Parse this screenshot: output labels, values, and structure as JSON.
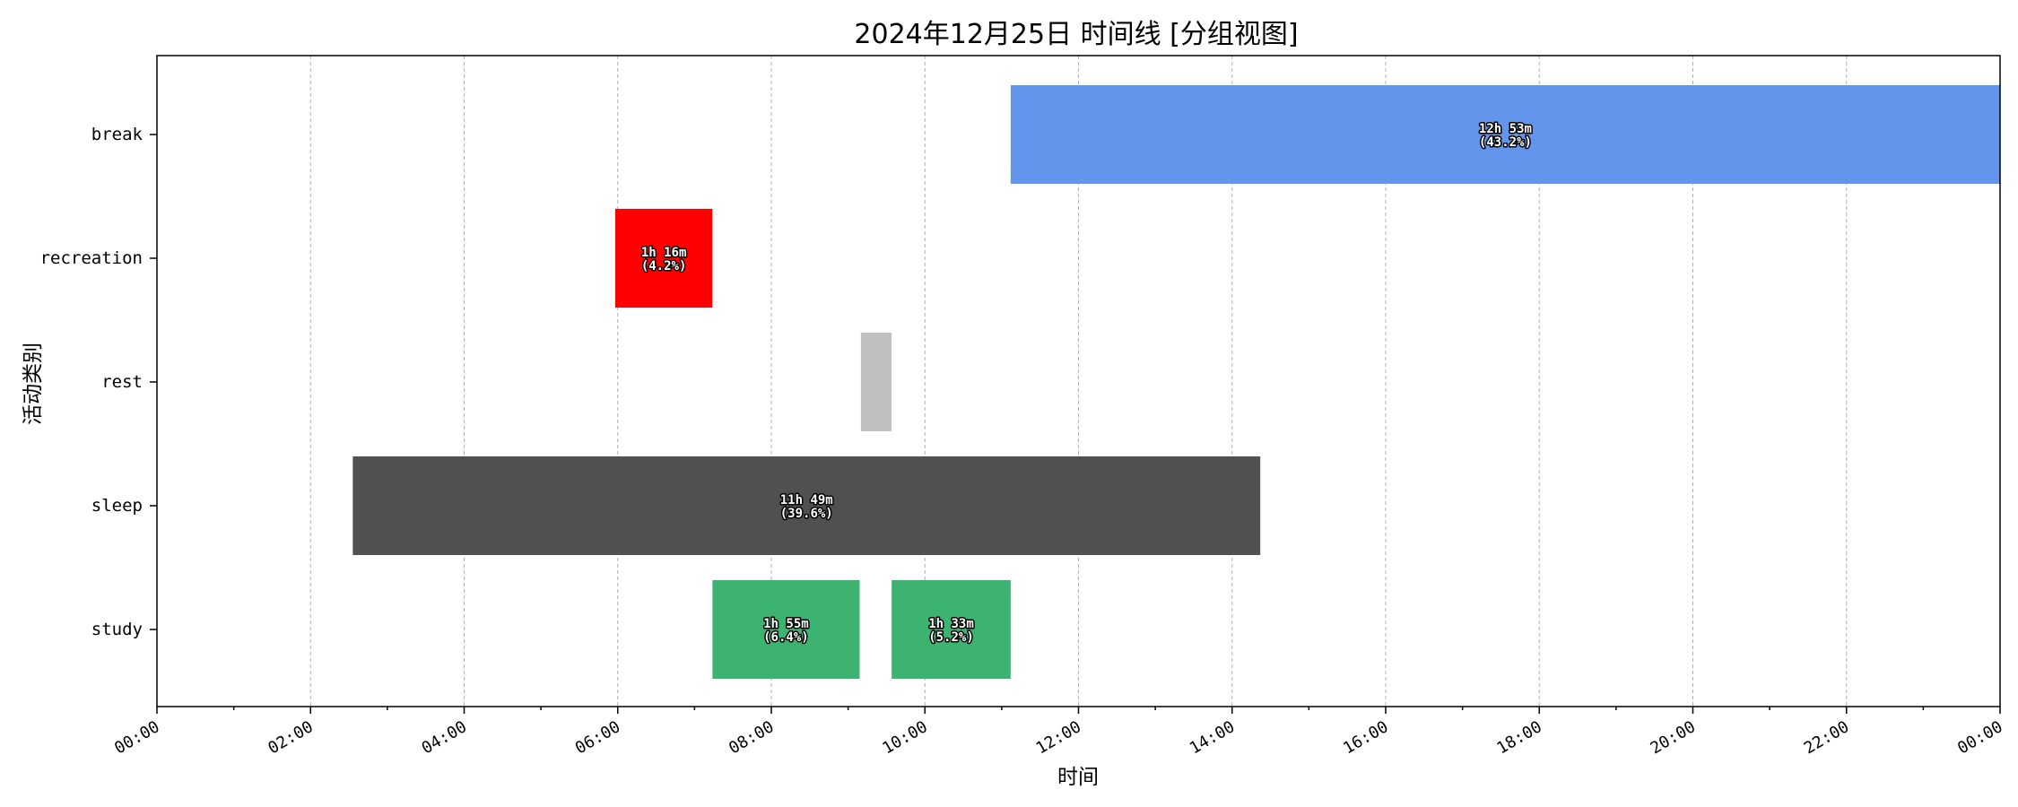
{
  "chart_data": {
    "type": "bar",
    "orientation": "horizontal-timeline",
    "title": "2024年12月25日 时间线 [分组视图]",
    "xlabel": "时间",
    "ylabel": "活动类别",
    "xlim": [
      "00:00",
      "24:00"
    ],
    "grid": "vertical dashed",
    "categories": [
      "break",
      "recreation",
      "rest",
      "sleep",
      "study"
    ],
    "x_ticks": [
      "00:00",
      "02:00",
      "04:00",
      "06:00",
      "08:00",
      "10:00",
      "12:00",
      "14:00",
      "16:00",
      "18:00",
      "20:00",
      "22:00",
      "00:00"
    ],
    "segments": [
      {
        "category": "break",
        "start": "11:07",
        "end": "24:00",
        "label": "12h 53m\n(43.2%)",
        "color": "#6495ED"
      },
      {
        "category": "recreation",
        "start": "05:58",
        "end": "07:14",
        "label": "1h 16m\n(4.2%)",
        "color": "#FF0000"
      },
      {
        "category": "rest",
        "start": "09:10",
        "end": "09:34",
        "label": "",
        "color": "#C0C0C0"
      },
      {
        "category": "sleep",
        "start": "02:33",
        "end": "14:22",
        "label": "11h 49m\n(39.6%)",
        "color": "#505050"
      },
      {
        "category": "study",
        "start": "07:14",
        "end": "09:09",
        "label": "1h 55m\n(6.4%)",
        "color": "#3CB371"
      },
      {
        "category": "study",
        "start": "09:34",
        "end": "11:07",
        "label": "1h 33m\n(5.2%)",
        "color": "#3CB371"
      }
    ]
  }
}
